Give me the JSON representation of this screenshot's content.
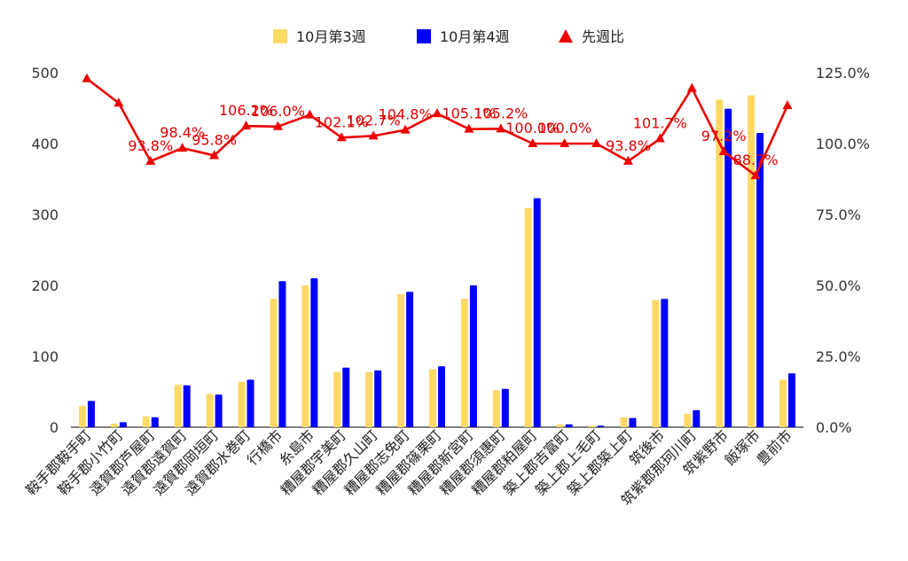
{
  "chart_data": {
    "type": "bar",
    "categories": [
      "鞍手郡鞍手町",
      "鞍手郡小竹町",
      "遠賀郡芦屋町",
      "遠賀郡遠賀町",
      "遠賀郡岡垣町",
      "遠賀郡水巻町",
      "行橋市",
      "糸島市",
      "糟屋郡宇美町",
      "糟屋郡久山町",
      "糟屋郡志免町",
      "糟屋郡篠栗町",
      "糟屋郡新宮町",
      "糟屋郡須惠町",
      "糟屋郡粕屋町",
      "築上郡吉富町",
      "築上郡上毛町",
      "築上郡築上町",
      "筑後市",
      "筑紫郡那珂川町",
      "筑紫野市",
      "飯塚市",
      "豊前市"
    ],
    "series": [
      {
        "name": "10月第3週",
        "type": "bar",
        "axis": "left",
        "color": "#FFD966",
        "values": [
          30,
          5,
          15,
          60,
          47,
          64,
          181,
          200,
          78,
          78,
          188,
          82,
          181,
          52,
          309,
          4,
          2,
          14,
          179,
          19,
          462,
          468,
          67
        ]
      },
      {
        "name": "10月第4週",
        "type": "bar",
        "axis": "left",
        "color": "#0000FF",
        "values": [
          37,
          7,
          14,
          59,
          46,
          67,
          206,
          210,
          84,
          80,
          191,
          86,
          200,
          54,
          323,
          4,
          2,
          13,
          181,
          24,
          449,
          415,
          76
        ]
      },
      {
        "name": "先週比",
        "type": "line",
        "axis": "right",
        "color": "#EE0000",
        "marker": "triangle",
        "values": [
          122.9,
          114.3,
          93.8,
          98.4,
          95.8,
          106.2,
          106.0,
          110.1,
          102.1,
          102.7,
          104.8,
          110.6,
          105.1,
          105.2,
          100.0,
          100.0,
          100.0,
          93.8,
          101.7,
          119.5,
          97.2,
          88.7,
          113.4
        ],
        "data_labels": [
          "",
          "",
          "93.8%",
          "98.4%",
          "95.8%",
          "106.2%",
          "106.0%",
          "",
          "102.1%",
          "102.7%",
          "104.8%",
          "",
          "105.1%",
          "105.2%",
          "100.0%",
          "100.0%",
          "",
          "93.8%",
          "101.7%",
          "",
          "97.2%",
          "88.7%",
          ""
        ]
      }
    ],
    "left_axis": {
      "ylim": [
        0,
        500
      ],
      "ticks": [
        "0",
        "100",
        "200",
        "300",
        "400",
        "500"
      ]
    },
    "right_axis": {
      "ylim": [
        0,
        125
      ],
      "ticks": [
        "0.0%",
        "25.0%",
        "50.0%",
        "75.0%",
        "100.0%",
        "125.0%"
      ]
    },
    "legend_position": "top",
    "grid": false
  }
}
